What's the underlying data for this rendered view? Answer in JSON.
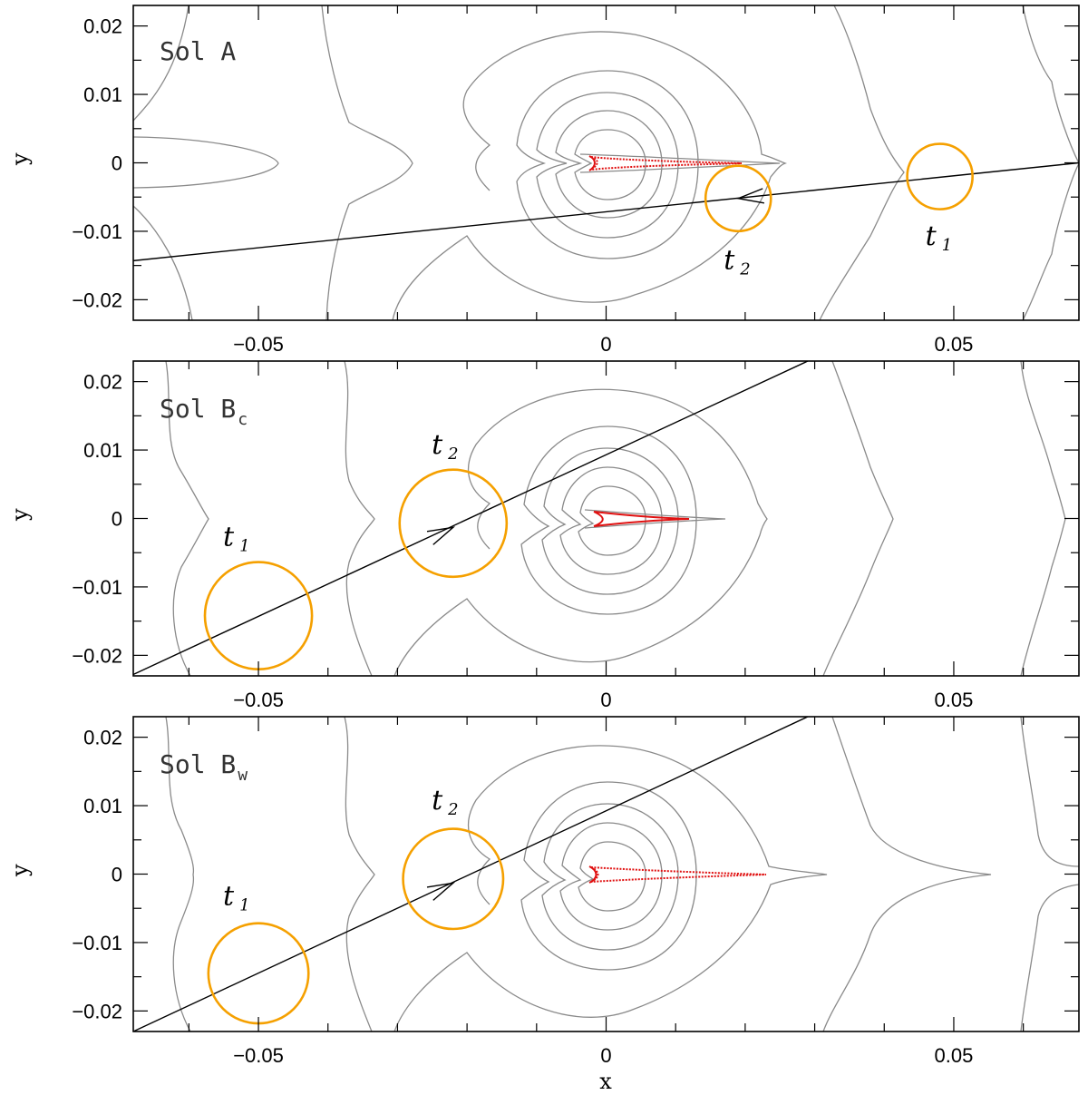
{
  "chart_data": {
    "type": "contour",
    "shared_xlabel": "x",
    "xlim": [
      -0.068,
      0.068
    ],
    "ylim": [
      -0.023,
      0.023
    ],
    "x_major_ticks": [
      -0.05,
      0,
      0.05
    ],
    "x_tick_labels": [
      "−0.05",
      "0",
      "0.05"
    ],
    "y_major_ticks": [
      -0.02,
      -0.01,
      0,
      0.01,
      0.02
    ],
    "y_tick_labels": [
      "−0.02",
      "−0.01",
      "0",
      "0.01",
      "0.02"
    ],
    "panels": [
      {
        "id": "A",
        "label_main": "Sol  A",
        "label_sub": "",
        "ylabel": "y",
        "trajectory": {
          "start": [
            0.068,
            0.0
          ],
          "end": [
            -0.068,
            -0.0143
          ]
        },
        "arrow_at": [
          0.019,
          -0.0052
        ],
        "arrow_direction": "left",
        "sources": [
          {
            "label": "t",
            "sub": "1",
            "center": [
              0.048,
              -0.002
            ],
            "radius": 0.0047,
            "label_pos": [
              0.048,
              -0.012
            ]
          },
          {
            "label": "t",
            "sub": "2",
            "center": [
              0.019,
              -0.0052
            ],
            "radius": 0.0047,
            "label_pos": [
              0.019,
              -0.0155
            ]
          }
        ],
        "caustic": {
          "center": [
            0.0,
            0.0
          ],
          "cusp_x": 0.018,
          "width": 0.0
        }
      },
      {
        "id": "Bc",
        "label_main": "Sol  B",
        "label_sub": "c",
        "ylabel": "y",
        "trajectory": {
          "start": [
            -0.068,
            -0.0228
          ],
          "end": [
            0.029,
            0.023
          ]
        },
        "arrow_at": [
          -0.022,
          -0.0013
        ],
        "arrow_direction": "right",
        "sources": [
          {
            "label": "t",
            "sub": "1",
            "center": [
              -0.05,
              -0.0142
            ],
            "radius": 0.0077,
            "label_pos": [
              -0.053,
              -0.004
            ]
          },
          {
            "label": "t",
            "sub": "2",
            "center": [
              -0.022,
              -0.0007
            ],
            "radius": 0.0077,
            "label_pos": [
              -0.023,
              0.0095
            ]
          }
        ],
        "caustic": {
          "center": [
            0.0,
            0.0
          ],
          "cusp_x": 0.0105
        }
      },
      {
        "id": "Bw",
        "label_main": "Sol  B",
        "label_sub": "w",
        "ylabel": "y",
        "trajectory": {
          "start": [
            -0.068,
            -0.023
          ],
          "end": [
            0.029,
            0.023
          ]
        },
        "arrow_at": [
          -0.022,
          -0.0013
        ],
        "arrow_direction": "right",
        "sources": [
          {
            "label": "t",
            "sub": "1",
            "center": [
              -0.05,
              -0.0145
            ],
            "radius": 0.0072,
            "label_pos": [
              -0.053,
              -0.0045
            ]
          },
          {
            "label": "t",
            "sub": "2",
            "center": [
              -0.022,
              -0.0007
            ],
            "radius": 0.0072,
            "label_pos": [
              -0.023,
              0.0095
            ]
          }
        ],
        "caustic": {
          "center": [
            0.0,
            0.0
          ],
          "cusp_x": 0.023
        }
      }
    ]
  }
}
